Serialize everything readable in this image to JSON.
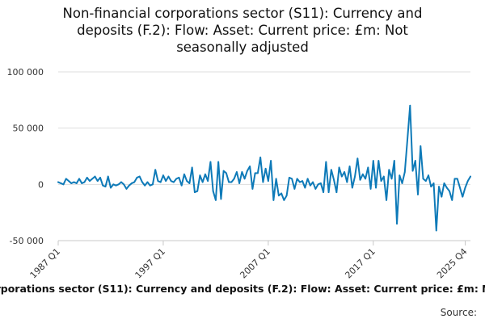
{
  "chart_data": {
    "type": "line",
    "title_lines": [
      "Non-financial corporations sector (S11): Currency and",
      "deposits (F.2): Flow: Asset: Current price: £m: Not",
      "seasonally adjusted"
    ],
    "series_name": "orporations sector (S11): Currency and deposits (F.2): Flow: Asset: Current price: £m: Not",
    "source_label": "Source:",
    "ylim": [
      -50000,
      100000
    ],
    "y_ticks": [
      {
        "value": 100000,
        "label": "100 000"
      },
      {
        "value": 50000,
        "label": "50 000"
      },
      {
        "value": 0,
        "label": "0"
      },
      {
        "value": -50000,
        "label": "-50 000"
      }
    ],
    "x_ticks": [
      {
        "index": 0,
        "label": "1987 Q1"
      },
      {
        "index": 40,
        "label": "1997 Q1"
      },
      {
        "index": 80,
        "label": "2007 Q1"
      },
      {
        "index": 120,
        "label": "2017 Q1"
      },
      {
        "index": 155,
        "label": "2025 Q4"
      }
    ],
    "start_period": "1987 Q1",
    "end_period": "2025 Q4",
    "color": "#0e7ab8",
    "values": [
      2000,
      1000,
      0,
      5000,
      3000,
      1000,
      2000,
      1000,
      5000,
      1000,
      2000,
      6000,
      3000,
      5000,
      7000,
      3000,
      6000,
      -1000,
      -2000,
      7000,
      -3000,
      0,
      -1000,
      0,
      2000,
      0,
      -4000,
      -1000,
      1000,
      2000,
      6000,
      7000,
      2000,
      -1000,
      2000,
      -1000,
      0,
      13000,
      3000,
      2000,
      8000,
      3000,
      7000,
      3000,
      2000,
      5000,
      6000,
      -1000,
      9000,
      3000,
      1000,
      15000,
      -7000,
      -6000,
      8000,
      2000,
      9000,
      3000,
      20000,
      -6000,
      -14000,
      20000,
      -13000,
      12000,
      10000,
      2000,
      2000,
      5000,
      11000,
      1000,
      11000,
      5000,
      12000,
      16000,
      -4000,
      10000,
      10000,
      24000,
      2000,
      14000,
      3000,
      21000,
      -14000,
      5000,
      -10000,
      -8000,
      -14000,
      -10000,
      6000,
      5000,
      -4000,
      5000,
      2000,
      3000,
      -3000,
      5000,
      -1000,
      2000,
      -4000,
      0,
      1000,
      -7000,
      20000,
      -7000,
      13000,
      4000,
      -7000,
      15000,
      7000,
      11000,
      2000,
      16000,
      -3000,
      7000,
      23000,
      4000,
      9000,
      5000,
      15000,
      -4000,
      21000,
      -3000,
      21000,
      3000,
      7000,
      -14000,
      13000,
      5000,
      21000,
      -35000,
      8000,
      1000,
      11000,
      40000,
      70000,
      12000,
      21000,
      -9000,
      34000,
      5000,
      3000,
      8000,
      -2000,
      1000,
      -41000,
      -2000,
      -11000,
      1000,
      -3000,
      -6000,
      -14000,
      5000,
      5000,
      -3000,
      -11000,
      -3000,
      3000,
      7000
    ]
  }
}
